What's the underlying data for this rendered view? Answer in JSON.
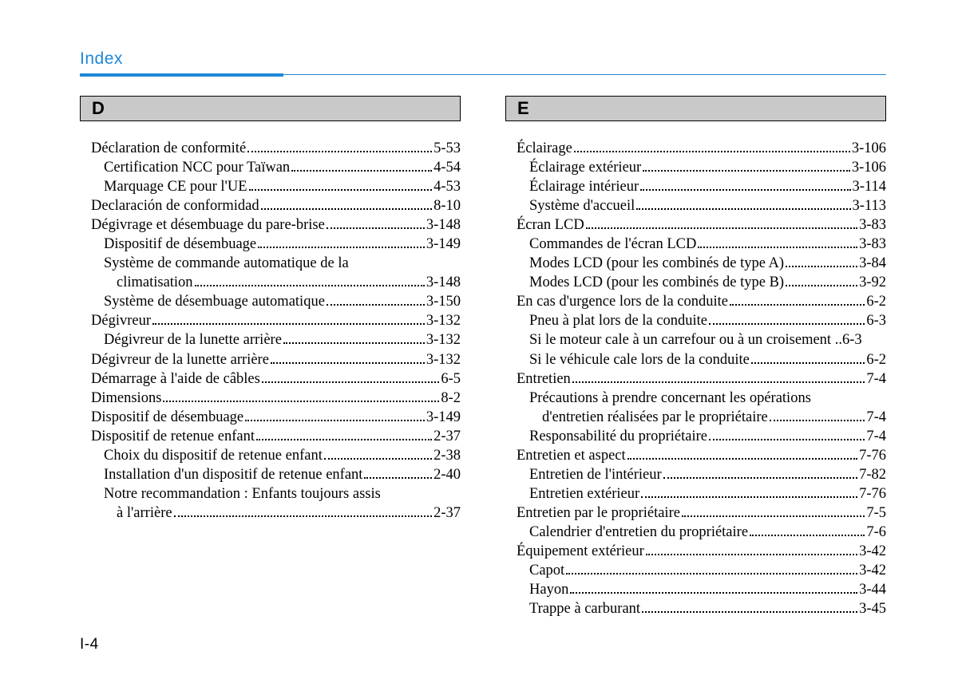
{
  "header": {
    "title": "Index"
  },
  "pageNumber": "I-4",
  "colors": {
    "accent": "#1e88d8",
    "sectionBg": "#c9c9c9",
    "sectionBorder": "#000000",
    "text": "#000000",
    "background": "#ffffff"
  },
  "layout": {
    "widthPx": 1200,
    "heightPx": 861,
    "ruleThickWidthPx": 255,
    "bodyFont": "Times New Roman",
    "headerFont": "Arial",
    "baseFontSizePt": 14,
    "indentStepPx": 16
  },
  "left": {
    "letter": "D",
    "entries": [
      {
        "label": "Déclaration de conformité",
        "page": "5-53",
        "level": 0
      },
      {
        "label": "Certification NCC pour Taïwan",
        "page": "4-54",
        "level": 1
      },
      {
        "label": "Marquage CE pour l'UE",
        "page": "4-53",
        "level": 1
      },
      {
        "label": "Declaración de conformidad",
        "page": "8-10",
        "level": 0
      },
      {
        "label": "Dégivrage et désembuage du pare-brise",
        "page": "3-148",
        "level": 0
      },
      {
        "label": "Dispositif de désembuage",
        "page": "3-149",
        "level": 1
      },
      {
        "label": "Système de commande automatique de la",
        "level": 1,
        "wrap": true
      },
      {
        "label": "climatisation",
        "page": "3-148",
        "level": 2,
        "cont": true
      },
      {
        "label": "Système de désembuage automatique",
        "page": "3-150",
        "level": 1
      },
      {
        "label": "Dégivreur",
        "page": "3-132",
        "level": 0
      },
      {
        "label": "Dégivreur de la lunette arrière",
        "page": "3-132",
        "level": 1
      },
      {
        "label": "Dégivreur de la lunette arrière",
        "page": "3-132",
        "level": 0
      },
      {
        "label": "Démarrage à l'aide de câbles",
        "page": "6-5",
        "level": 0
      },
      {
        "label": "Dimensions",
        "page": "8-2",
        "level": 0
      },
      {
        "label": "Dispositif de désembuage",
        "page": "3-149",
        "level": 0
      },
      {
        "label": "Dispositif de retenue enfant",
        "page": "2-37",
        "level": 0
      },
      {
        "label": "Choix du dispositif de retenue enfant",
        "page": "2-38",
        "level": 1
      },
      {
        "label": "Installation d'un dispositif de retenue enfant",
        "page": "2-40",
        "level": 1
      },
      {
        "label": "Notre recommandation : Enfants toujours assis",
        "level": 1,
        "wrap": true
      },
      {
        "label": "à l'arrière",
        "page": "2-37",
        "level": 2,
        "cont": true
      }
    ]
  },
  "right": {
    "letter": "E",
    "entries": [
      {
        "label": "Éclairage",
        "page": "3-106",
        "level": 0
      },
      {
        "label": "Éclairage extérieur",
        "page": "3-106",
        "level": 1
      },
      {
        "label": "Éclairage intérieur",
        "page": "3-114",
        "level": 1
      },
      {
        "label": "Système d'accueil",
        "page": "3-113",
        "level": 1
      },
      {
        "label": "Écran LCD",
        "page": "3-83",
        "level": 0
      },
      {
        "label": "Commandes de l'écran LCD",
        "page": "3-83",
        "level": 1
      },
      {
        "label": "Modes LCD (pour les combinés de type A)",
        "page": "3-84",
        "level": 1
      },
      {
        "label": "Modes LCD (pour les combinés de type B)",
        "page": "3-92",
        "level": 1
      },
      {
        "label": "En cas d'urgence lors de la conduite",
        "page": "6-2",
        "level": 0
      },
      {
        "label": "Pneu à plat lors de la conduite",
        "page": "6-3",
        "level": 1
      },
      {
        "label": "Si le moteur cale à un carrefour ou à un croisement",
        "page": "6-3",
        "level": 1,
        "tight": true
      },
      {
        "label": "Si le véhicule cale lors de la conduite",
        "page": "6-2",
        "level": 1
      },
      {
        "label": "Entretien",
        "page": "7-4",
        "level": 0
      },
      {
        "label": "Précautions à prendre concernant les opérations",
        "level": 1,
        "wrap": true
      },
      {
        "label": "d'entretien réalisées par le propriétaire",
        "page": "7-4",
        "level": 2,
        "cont": true
      },
      {
        "label": "Responsabilité du propriétaire",
        "page": "7-4",
        "level": 1
      },
      {
        "label": "Entretien et aspect",
        "page": "7-76",
        "level": 0
      },
      {
        "label": "Entretien de l'intérieur",
        "page": "7-82",
        "level": 1
      },
      {
        "label": "Entretien extérieur",
        "page": "7-76",
        "level": 1
      },
      {
        "label": "Entretien par le propriétaire",
        "page": "7-5",
        "level": 0
      },
      {
        "label": "Calendrier d'entretien du propriétaire",
        "page": "7-6",
        "level": 1
      },
      {
        "label": "Équipement extérieur",
        "page": "3-42",
        "level": 0
      },
      {
        "label": "Capot",
        "page": "3-42",
        "level": 1
      },
      {
        "label": "Hayon",
        "page": "3-44",
        "level": 1
      },
      {
        "label": "Trappe à carburant",
        "page": "3-45",
        "level": 1
      }
    ]
  }
}
